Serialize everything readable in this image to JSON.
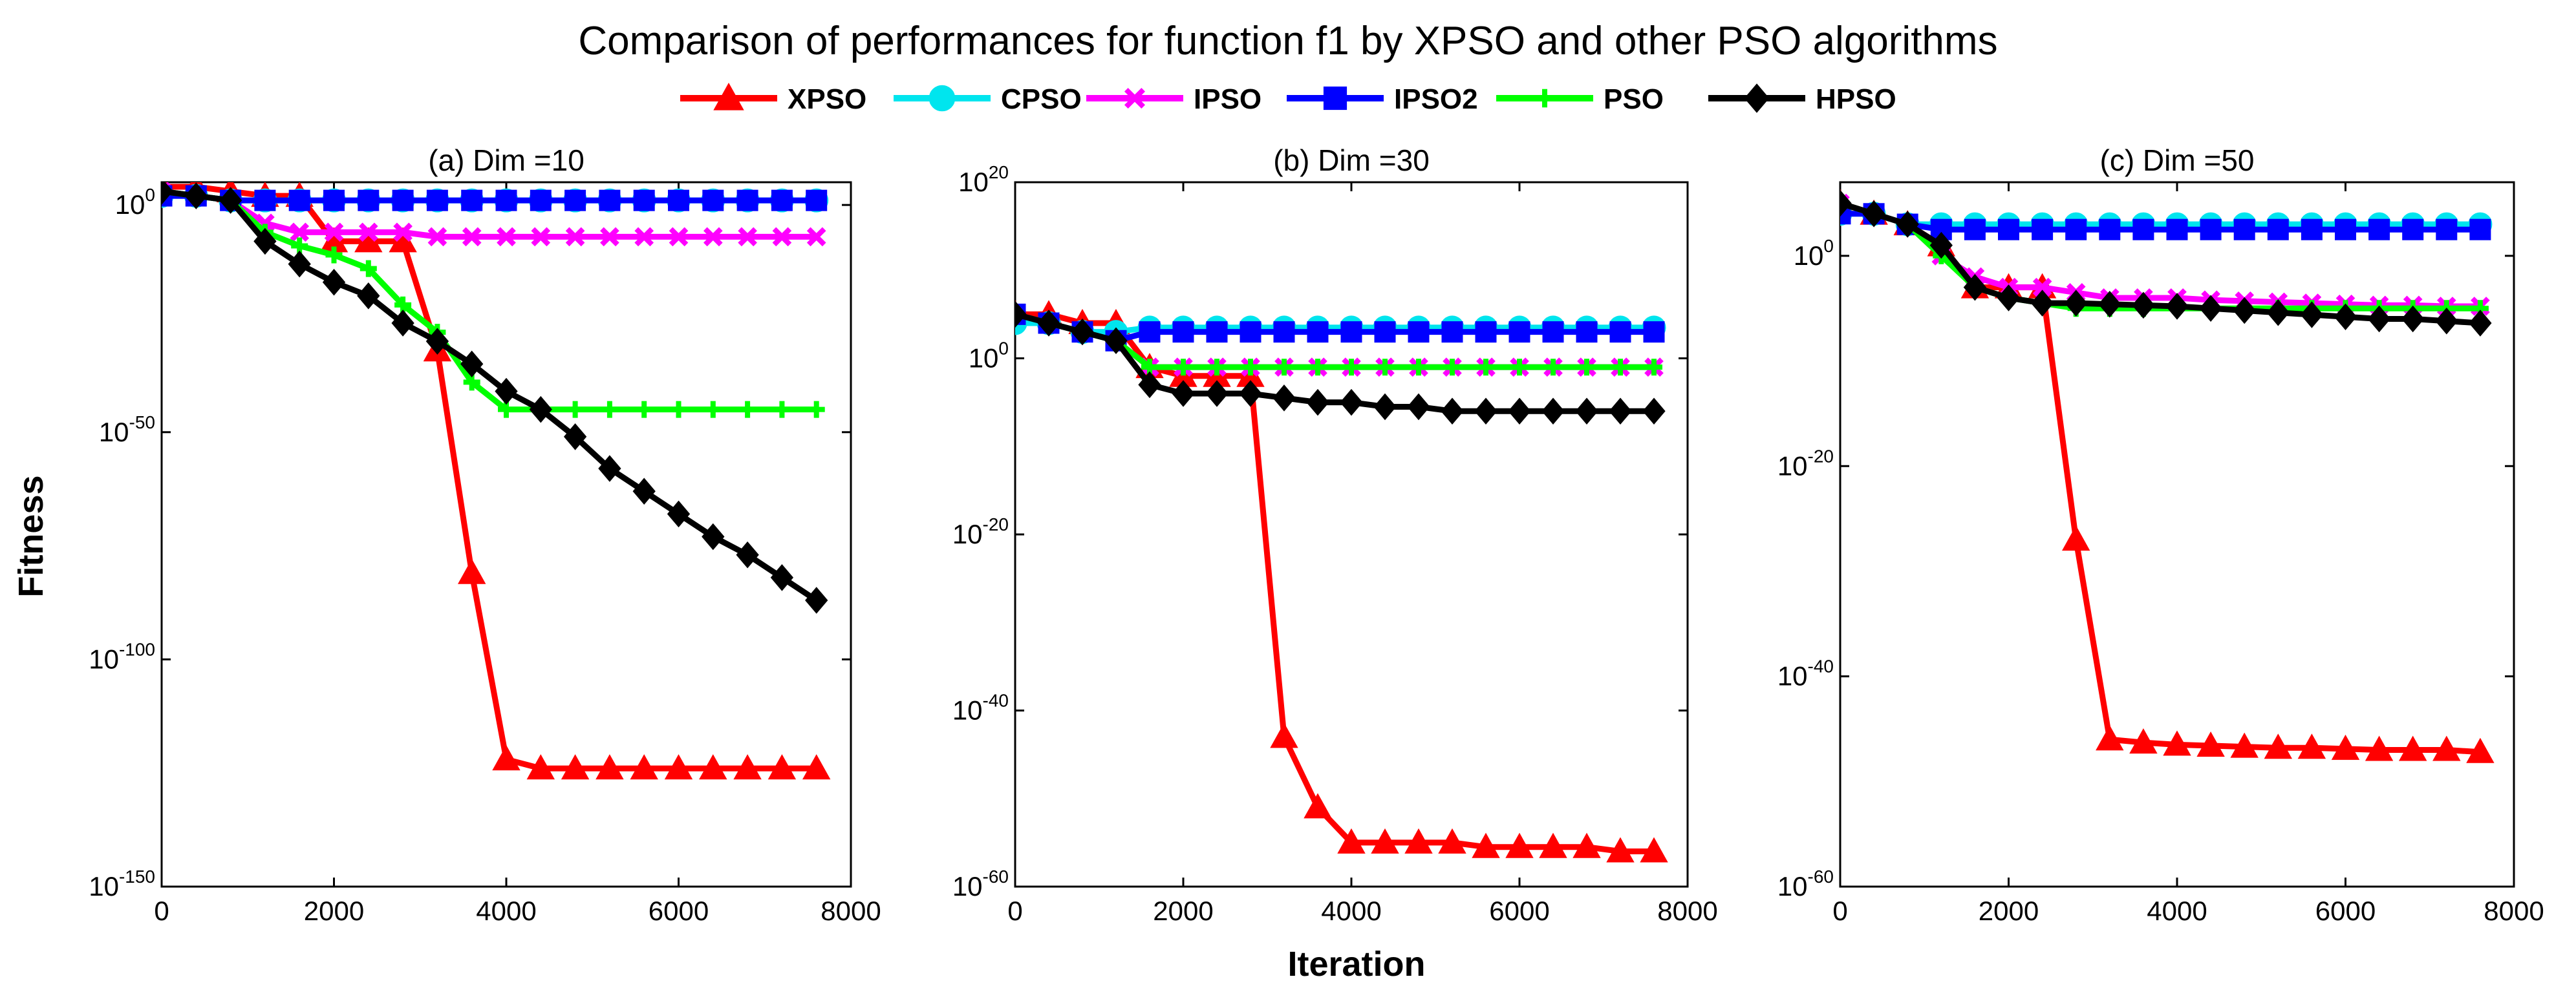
{
  "figure": {
    "title": "Comparison of performances for function f1 by XPSO and other PSO algorithms",
    "ylabel": "Fitness",
    "xlabel": "Iteration"
  },
  "series_styles": [
    {
      "name": "XPSO",
      "color": "#ff0000",
      "marker": "triangle"
    },
    {
      "name": "CPSO",
      "color": "#00e5ee",
      "marker": "circle"
    },
    {
      "name": "IPSO",
      "color": "#ff00ff",
      "marker": "x"
    },
    {
      "name": "IPSO2",
      "color": "#0000ff",
      "marker": "square"
    },
    {
      "name": "PSO",
      "color": "#00ff00",
      "marker": "plus"
    },
    {
      "name": "HPSO",
      "color": "#000000",
      "marker": "diamond"
    }
  ],
  "chart_data": [
    {
      "type": "line",
      "title": "(a) Dim =10",
      "xlabel": "",
      "ylabel": "Fitness",
      "yscale": "log",
      "xlim": [
        0,
        8000
      ],
      "ylim_exp": [
        -150,
        5
      ],
      "xticks": [
        0,
        2000,
        4000,
        6000,
        8000
      ],
      "yticks": [
        {
          "base": "10",
          "exp": "0",
          "val": 0
        },
        {
          "base": "10",
          "exp": "-50",
          "val": -50
        },
        {
          "base": "10",
          "exp": "-100",
          "val": -100
        },
        {
          "base": "10",
          "exp": "-150",
          "val": -150
        }
      ],
      "x": [
        0,
        400,
        800,
        1200,
        1600,
        2000,
        2400,
        2800,
        3200,
        3600,
        4000,
        4400,
        4800,
        5200,
        5600,
        6000,
        6400,
        6800,
        7200,
        7600
      ],
      "series": [
        {
          "name": "XPSO",
          "log10_values": [
            4,
            4,
            3,
            2,
            2,
            -8,
            -8,
            -8,
            -32,
            -81,
            -122,
            -124,
            -124,
            -124,
            -124,
            -124,
            -124,
            -124,
            -124,
            -124
          ]
        },
        {
          "name": "CPSO",
          "log10_values": [
            2,
            2,
            1,
            1,
            1,
            1,
            1,
            1,
            1,
            1,
            1,
            1,
            1,
            1,
            1,
            1,
            1,
            1,
            1,
            1
          ]
        },
        {
          "name": "IPSO",
          "log10_values": [
            3,
            2,
            1,
            -4,
            -6,
            -6,
            -6,
            -6,
            -7,
            -7,
            -7,
            -7,
            -7,
            -7,
            -7,
            -7,
            -7,
            -7,
            -7,
            -7
          ]
        },
        {
          "name": "IPSO2",
          "log10_values": [
            2,
            2,
            1,
            1,
            1,
            1,
            1,
            1,
            1,
            1,
            1,
            1,
            1,
            1,
            1,
            1,
            1,
            1,
            1,
            1
          ]
        },
        {
          "name": "PSO",
          "log10_values": [
            3,
            2,
            1,
            -6,
            -9,
            -11,
            -14,
            -22,
            -28,
            -39,
            -45,
            -45,
            -45,
            -45,
            -45,
            -45,
            -45,
            -45,
            -45,
            -45
          ]
        },
        {
          "name": "HPSO",
          "log10_values": [
            3,
            2,
            1,
            -8,
            -13,
            -17,
            -20,
            -26,
            -30,
            -35,
            -41,
            -45,
            -51,
            -58,
            -63,
            -68,
            -73,
            -77,
            -82,
            -87
          ]
        }
      ]
    },
    {
      "type": "line",
      "title": "(b) Dim =30",
      "xlabel": "Iteration",
      "ylabel": "",
      "yscale": "log",
      "xlim": [
        0,
        8000
      ],
      "ylim_exp": [
        -60,
        20
      ],
      "xticks": [
        0,
        2000,
        4000,
        6000,
        8000
      ],
      "yticks": [
        {
          "base": "10",
          "exp": "20",
          "val": 20
        },
        {
          "base": "10",
          "exp": "0",
          "val": 0
        },
        {
          "base": "10",
          "exp": "-20",
          "val": -20
        },
        {
          "base": "10",
          "exp": "-40",
          "val": -40
        },
        {
          "base": "10",
          "exp": "-60",
          "val": -60
        }
      ],
      "x": [
        0,
        400,
        800,
        1200,
        1600,
        2000,
        2400,
        2800,
        3200,
        3600,
        4000,
        4400,
        4800,
        5200,
        5600,
        6000,
        6400,
        6800,
        7200,
        7600
      ],
      "series": [
        {
          "name": "XPSO",
          "log10_values": [
            5,
            5,
            4,
            4,
            -1,
            -2,
            -2,
            -2,
            -43,
            -51,
            -55,
            -55,
            -55,
            -55,
            -55.5,
            -55.5,
            -55.5,
            -55.5,
            -56,
            -56
          ]
        },
        {
          "name": "CPSO",
          "log10_values": [
            4,
            4,
            3,
            3,
            3.5,
            3.5,
            3.5,
            3.5,
            3.5,
            3.5,
            3.5,
            3.5,
            3.5,
            3.5,
            3.5,
            3.5,
            3.5,
            3.5,
            3.5,
            3.5
          ]
        },
        {
          "name": "IPSO",
          "log10_values": [
            5,
            4,
            3,
            2,
            -1,
            -1,
            -1,
            -1,
            -1,
            -1,
            -1,
            -1,
            -1,
            -1,
            -1,
            -1,
            -1,
            -1,
            -1,
            -1
          ]
        },
        {
          "name": "IPSO2",
          "log10_values": [
            5,
            4,
            3,
            2,
            3,
            3,
            3,
            3,
            3,
            3,
            3,
            3,
            3,
            3,
            3,
            3,
            3,
            3,
            3,
            3
          ]
        },
        {
          "name": "PSO",
          "log10_values": [
            5,
            4,
            3,
            2,
            -1,
            -1,
            -1,
            -1,
            -1,
            -1,
            -1,
            -1,
            -1,
            -1,
            -1,
            -1,
            -1,
            -1,
            -1,
            -1
          ]
        },
        {
          "name": "HPSO",
          "log10_values": [
            5,
            4,
            3,
            2,
            -3,
            -4,
            -4,
            -4,
            -4.5,
            -5,
            -5,
            -5.5,
            -5.5,
            -6,
            -6,
            -6,
            -6,
            -6,
            -6,
            -6
          ]
        }
      ]
    },
    {
      "type": "line",
      "title": "(c) Dim =50",
      "xlabel": "",
      "ylabel": "",
      "yscale": "log",
      "xlim": [
        0,
        8000
      ],
      "ylim_exp": [
        -60,
        7
      ],
      "xticks": [
        0,
        2000,
        4000,
        6000,
        8000
      ],
      "yticks": [
        {
          "base": "10",
          "exp": "0",
          "val": 0
        },
        {
          "base": "10",
          "exp": "-20",
          "val": -20
        },
        {
          "base": "10",
          "exp": "-40",
          "val": -40
        },
        {
          "base": "10",
          "exp": "-60",
          "val": -60
        }
      ],
      "x": [
        0,
        400,
        800,
        1200,
        1600,
        2000,
        2400,
        2800,
        3200,
        3600,
        4000,
        4400,
        4800,
        5200,
        5600,
        6000,
        6400,
        6800,
        7200,
        7600
      ],
      "series": [
        {
          "name": "XPSO",
          "log10_values": [
            5,
            4,
            3,
            1,
            -3,
            -3,
            -3,
            -27,
            -46,
            -46.3,
            -46.5,
            -46.6,
            -46.7,
            -46.8,
            -46.8,
            -46.9,
            -47,
            -47,
            -47,
            -47.2
          ]
        },
        {
          "name": "CPSO",
          "log10_values": [
            4,
            4,
            3,
            3,
            3,
            3,
            3,
            3,
            3,
            3,
            3,
            3,
            3,
            3,
            3,
            3,
            3,
            3,
            3,
            3
          ]
        },
        {
          "name": "IPSO",
          "log10_values": [
            5,
            4,
            3,
            0,
            -2,
            -3,
            -3,
            -3.5,
            -4,
            -4,
            -4,
            -4.2,
            -4.3,
            -4.4,
            -4.5,
            -4.6,
            -4.7,
            -4.7,
            -4.8,
            -4.8
          ]
        },
        {
          "name": "IPSO2",
          "log10_values": [
            4,
            4,
            3,
            2.5,
            2.5,
            2.5,
            2.5,
            2.5,
            2.5,
            2.5,
            2.5,
            2.5,
            2.5,
            2.5,
            2.5,
            2.5,
            2.5,
            2.5,
            2.5,
            2.5
          ]
        },
        {
          "name": "PSO",
          "log10_values": [
            5,
            4,
            3,
            0,
            -3,
            -4,
            -4.5,
            -5,
            -5,
            -5,
            -5,
            -5,
            -5,
            -5,
            -5,
            -5,
            -5,
            -5,
            -5,
            -5
          ]
        },
        {
          "name": "HPSO",
          "log10_values": [
            5,
            4,
            3,
            1,
            -3,
            -4,
            -4.5,
            -4.5,
            -4.6,
            -4.7,
            -4.8,
            -5,
            -5.2,
            -5.4,
            -5.6,
            -5.8,
            -6,
            -6,
            -6.2,
            -6.4
          ]
        }
      ]
    }
  ]
}
